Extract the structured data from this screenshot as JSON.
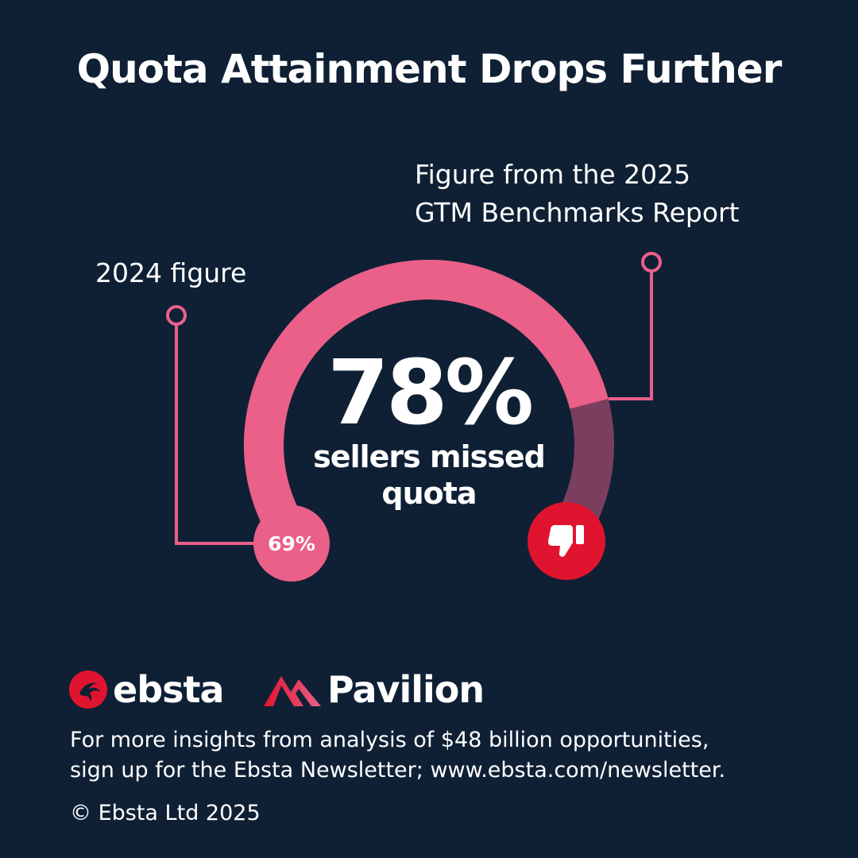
{
  "title": "Quota Attainment Drops Further",
  "annotations": {
    "current_line1": "Figure from the 2025",
    "current_line2": "GTM Benchmarks Report",
    "previous": "2024 figure"
  },
  "headline": {
    "value": "78%",
    "caption_line1": "sellers missed",
    "caption_line2": "quota"
  },
  "chart_data": {
    "type": "gauge",
    "series": [
      {
        "name": "2024 figure",
        "value": 69,
        "label": "69%"
      },
      {
        "name": "Figure from the 2025 GTM Benchmarks Report",
        "value": 78,
        "label": "78%"
      }
    ],
    "range": [
      0,
      100
    ]
  },
  "colors": {
    "background": "#0f2035",
    "arc_fill": "#ea6089",
    "arc_track": "#7a3f5f",
    "leader": "#ea6089",
    "badge": "#e0142e",
    "text": "#ffffff"
  },
  "icons": {
    "badge": "thumbs-down-icon",
    "ebsta_mark": "ebsta-logo-icon",
    "pavilion_mark": "pavilion-logo-icon"
  },
  "logos": {
    "ebsta": "ebsta",
    "pavilion": "Pavilion"
  },
  "footer": {
    "line1": "For more insights from analysis of $48 billion opportunities,",
    "line2": "sign up for the Ebsta Newsletter; www.ebsta.com/newsletter.",
    "copyright": "© Ebsta Ltd 2025"
  }
}
